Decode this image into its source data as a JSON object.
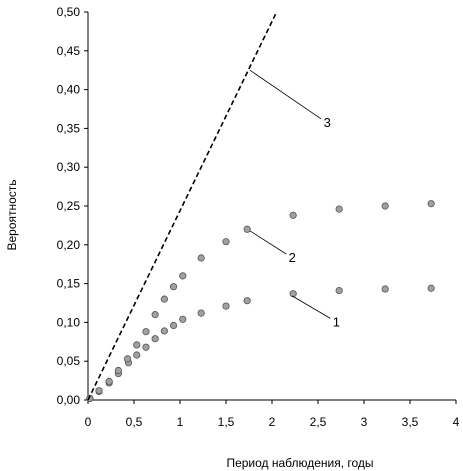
{
  "chart_data": {
    "type": "scatter",
    "title": "",
    "xlabel": "Период наблюдения, годы",
    "ylabel": "Вероятность",
    "xlim": [
      0,
      4
    ],
    "ylim": [
      0,
      0.5
    ],
    "x_ticks": [
      0,
      0.5,
      1,
      1.5,
      2,
      2.5,
      3,
      3.5,
      4
    ],
    "x_tick_labels": [
      "0",
      "0,5",
      "1",
      "1,5",
      "2",
      "2,5",
      "3",
      "3,5",
      "4"
    ],
    "y_ticks": [
      0,
      0.05,
      0.1,
      0.15,
      0.2,
      0.25,
      0.3,
      0.35,
      0.4,
      0.45,
      0.5
    ],
    "y_tick_labels": [
      "0,00",
      "0,05",
      "0,10",
      "0,15",
      "0,20",
      "0,25",
      "0,30",
      "0,35",
      "0,40",
      "0,45",
      "0,50"
    ],
    "grid": false,
    "legend": "none",
    "series": [
      {
        "label": "1",
        "style": "markers",
        "color": "#a0a0a0",
        "x": [
          0.02,
          0.12,
          0.23,
          0.33,
          0.44,
          0.53,
          0.63,
          0.73,
          0.83,
          0.93,
          1.03,
          1.23,
          1.5,
          1.73,
          2.23,
          2.73,
          3.23,
          3.73
        ],
        "y": [
          0.002,
          0.011,
          0.022,
          0.034,
          0.048,
          0.058,
          0.068,
          0.079,
          0.089,
          0.096,
          0.104,
          0.112,
          0.121,
          0.128,
          0.137,
          0.141,
          0.143,
          0.144
        ]
      },
      {
        "label": "2",
        "style": "markers",
        "color": "#a0a0a0",
        "x": [
          0.02,
          0.12,
          0.23,
          0.33,
          0.43,
          0.53,
          0.63,
          0.73,
          0.83,
          0.93,
          1.03,
          1.23,
          1.5,
          1.73,
          2.23,
          2.73,
          3.23,
          3.73
        ],
        "y": [
          0.002,
          0.012,
          0.024,
          0.038,
          0.053,
          0.071,
          0.088,
          0.11,
          0.13,
          0.146,
          0.16,
          0.183,
          0.204,
          0.22,
          0.238,
          0.246,
          0.25,
          0.253
        ]
      },
      {
        "label": "3",
        "style": "dashed-line",
        "color": "#000000",
        "x": [
          0,
          2.05
        ],
        "y": [
          0,
          0.5
        ]
      }
    ],
    "annotations": [
      {
        "text": "3",
        "series": "3",
        "point_x": 1.76,
        "point_y": 0.425,
        "text_x": 2.6,
        "text_y": 0.357
      },
      {
        "text": "2",
        "series": "2",
        "point_x": 1.76,
        "point_y": 0.218,
        "text_x": 2.22,
        "text_y": 0.183
      },
      {
        "text": "1",
        "series": "1",
        "point_x": 2.22,
        "point_y": 0.134,
        "text_x": 2.7,
        "text_y": 0.1
      }
    ]
  }
}
